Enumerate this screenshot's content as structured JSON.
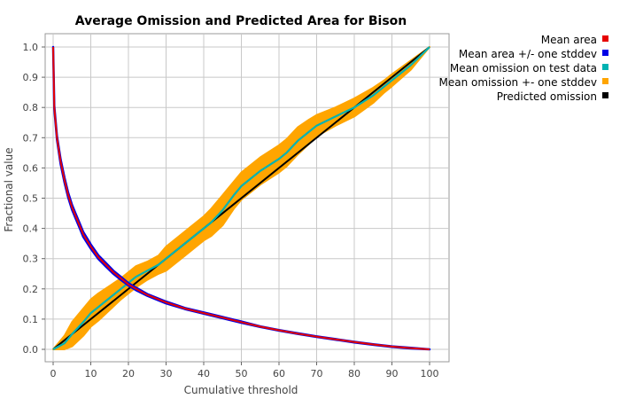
{
  "chart_data": {
    "type": "line",
    "title": "Average Omission and Predicted Area for Bison",
    "xlabel": "Cumulative threshold",
    "ylabel": "Fractional value",
    "xlim": [
      0,
      100
    ],
    "ylim": [
      0,
      1.0
    ],
    "x_ticks": [
      "0",
      "10",
      "20",
      "30",
      "40",
      "50",
      "60",
      "70",
      "80",
      "90",
      "100"
    ],
    "y_ticks": [
      "0.0",
      "0.1",
      "0.2",
      "0.3",
      "0.4",
      "0.5",
      "0.6",
      "0.7",
      "0.8",
      "0.9",
      "1.0"
    ],
    "x_tick_values": [
      0,
      10,
      20,
      30,
      40,
      50,
      60,
      70,
      80,
      90,
      100
    ],
    "y_tick_values": [
      0,
      0.1,
      0.2,
      0.3,
      0.4,
      0.5,
      0.6,
      0.7,
      0.8,
      0.9,
      1.0
    ],
    "grid": true,
    "legend_position": "right",
    "series": [
      {
        "name": "Mean area",
        "color": "#e60000",
        "x": [
          0,
          0.3,
          1,
          2,
          3,
          4,
          5,
          6,
          7,
          8,
          10,
          12,
          14,
          16,
          18,
          20,
          22,
          25,
          30,
          35,
          40,
          45,
          50,
          55,
          60,
          65,
          70,
          75,
          80,
          85,
          90,
          95,
          100
        ],
        "y": [
          1.0,
          0.8,
          0.7,
          0.62,
          0.56,
          0.51,
          0.47,
          0.44,
          0.41,
          0.38,
          0.34,
          0.305,
          0.28,
          0.255,
          0.235,
          0.215,
          0.2,
          0.18,
          0.155,
          0.135,
          0.12,
          0.105,
          0.09,
          0.075,
          0.063,
          0.052,
          0.042,
          0.033,
          0.024,
          0.016,
          0.009,
          0.004,
          0.0
        ]
      },
      {
        "name": "Mean area +/- one stddev",
        "color": "#0000e6",
        "x": [
          0,
          0.3,
          1,
          2,
          3,
          4,
          5,
          6,
          7,
          8,
          10,
          12,
          14,
          16,
          18,
          20,
          22,
          25,
          30,
          35,
          40,
          45,
          50,
          55,
          60,
          65,
          70,
          75,
          80,
          85,
          90,
          95,
          100
        ],
        "upper": [
          1.0,
          0.805,
          0.706,
          0.628,
          0.568,
          0.518,
          0.478,
          0.448,
          0.418,
          0.388,
          0.347,
          0.311,
          0.286,
          0.26,
          0.24,
          0.219,
          0.204,
          0.183,
          0.158,
          0.137,
          0.122,
          0.107,
          0.092,
          0.076,
          0.064,
          0.053,
          0.043,
          0.034,
          0.025,
          0.017,
          0.01,
          0.005,
          0.0
        ],
        "lower": [
          1.0,
          0.795,
          0.694,
          0.612,
          0.552,
          0.502,
          0.462,
          0.432,
          0.402,
          0.372,
          0.333,
          0.299,
          0.274,
          0.25,
          0.23,
          0.211,
          0.196,
          0.177,
          0.152,
          0.133,
          0.118,
          0.103,
          0.088,
          0.074,
          0.062,
          0.051,
          0.041,
          0.032,
          0.023,
          0.015,
          0.008,
          0.003,
          0.0
        ]
      },
      {
        "name": "Mean omission on test data",
        "color": "#00b3b3",
        "x": [
          0,
          3,
          5,
          8,
          10,
          12,
          15,
          18,
          20,
          22,
          25,
          28,
          30,
          35,
          40,
          42,
          45,
          48,
          50,
          55,
          60,
          62,
          65,
          68,
          70,
          75,
          80,
          85,
          88,
          90,
          95,
          100
        ],
        "y": [
          0.0,
          0.02,
          0.05,
          0.09,
          0.12,
          0.14,
          0.17,
          0.2,
          0.22,
          0.24,
          0.26,
          0.28,
          0.3,
          0.35,
          0.4,
          0.42,
          0.46,
          0.51,
          0.54,
          0.59,
          0.63,
          0.65,
          0.69,
          0.72,
          0.74,
          0.77,
          0.8,
          0.84,
          0.87,
          0.89,
          0.94,
          1.0
        ]
      },
      {
        "name": "Mean omission +- one stddev",
        "color": "#ffa500",
        "x": [
          0,
          3,
          5,
          8,
          10,
          12,
          15,
          18,
          20,
          22,
          25,
          28,
          30,
          35,
          40,
          42,
          45,
          48,
          50,
          55,
          60,
          62,
          65,
          68,
          70,
          75,
          80,
          85,
          88,
          90,
          95,
          100
        ],
        "upper": [
          0.0,
          0.045,
          0.09,
          0.135,
          0.165,
          0.185,
          0.21,
          0.235,
          0.255,
          0.275,
          0.29,
          0.31,
          0.34,
          0.39,
          0.44,
          0.465,
          0.51,
          0.555,
          0.585,
          0.635,
          0.675,
          0.695,
          0.735,
          0.76,
          0.775,
          0.8,
          0.83,
          0.865,
          0.89,
          0.91,
          0.955,
          1.0
        ],
        "lower": [
          0.0,
          0.0,
          0.01,
          0.045,
          0.075,
          0.095,
          0.13,
          0.165,
          0.185,
          0.205,
          0.23,
          0.25,
          0.26,
          0.31,
          0.36,
          0.375,
          0.41,
          0.465,
          0.495,
          0.545,
          0.585,
          0.605,
          0.645,
          0.68,
          0.705,
          0.74,
          0.77,
          0.815,
          0.85,
          0.87,
          0.925,
          1.0
        ]
      },
      {
        "name": "Predicted omission",
        "color": "#000000",
        "x": [
          0,
          100
        ],
        "y": [
          0.0,
          1.0
        ]
      }
    ]
  }
}
